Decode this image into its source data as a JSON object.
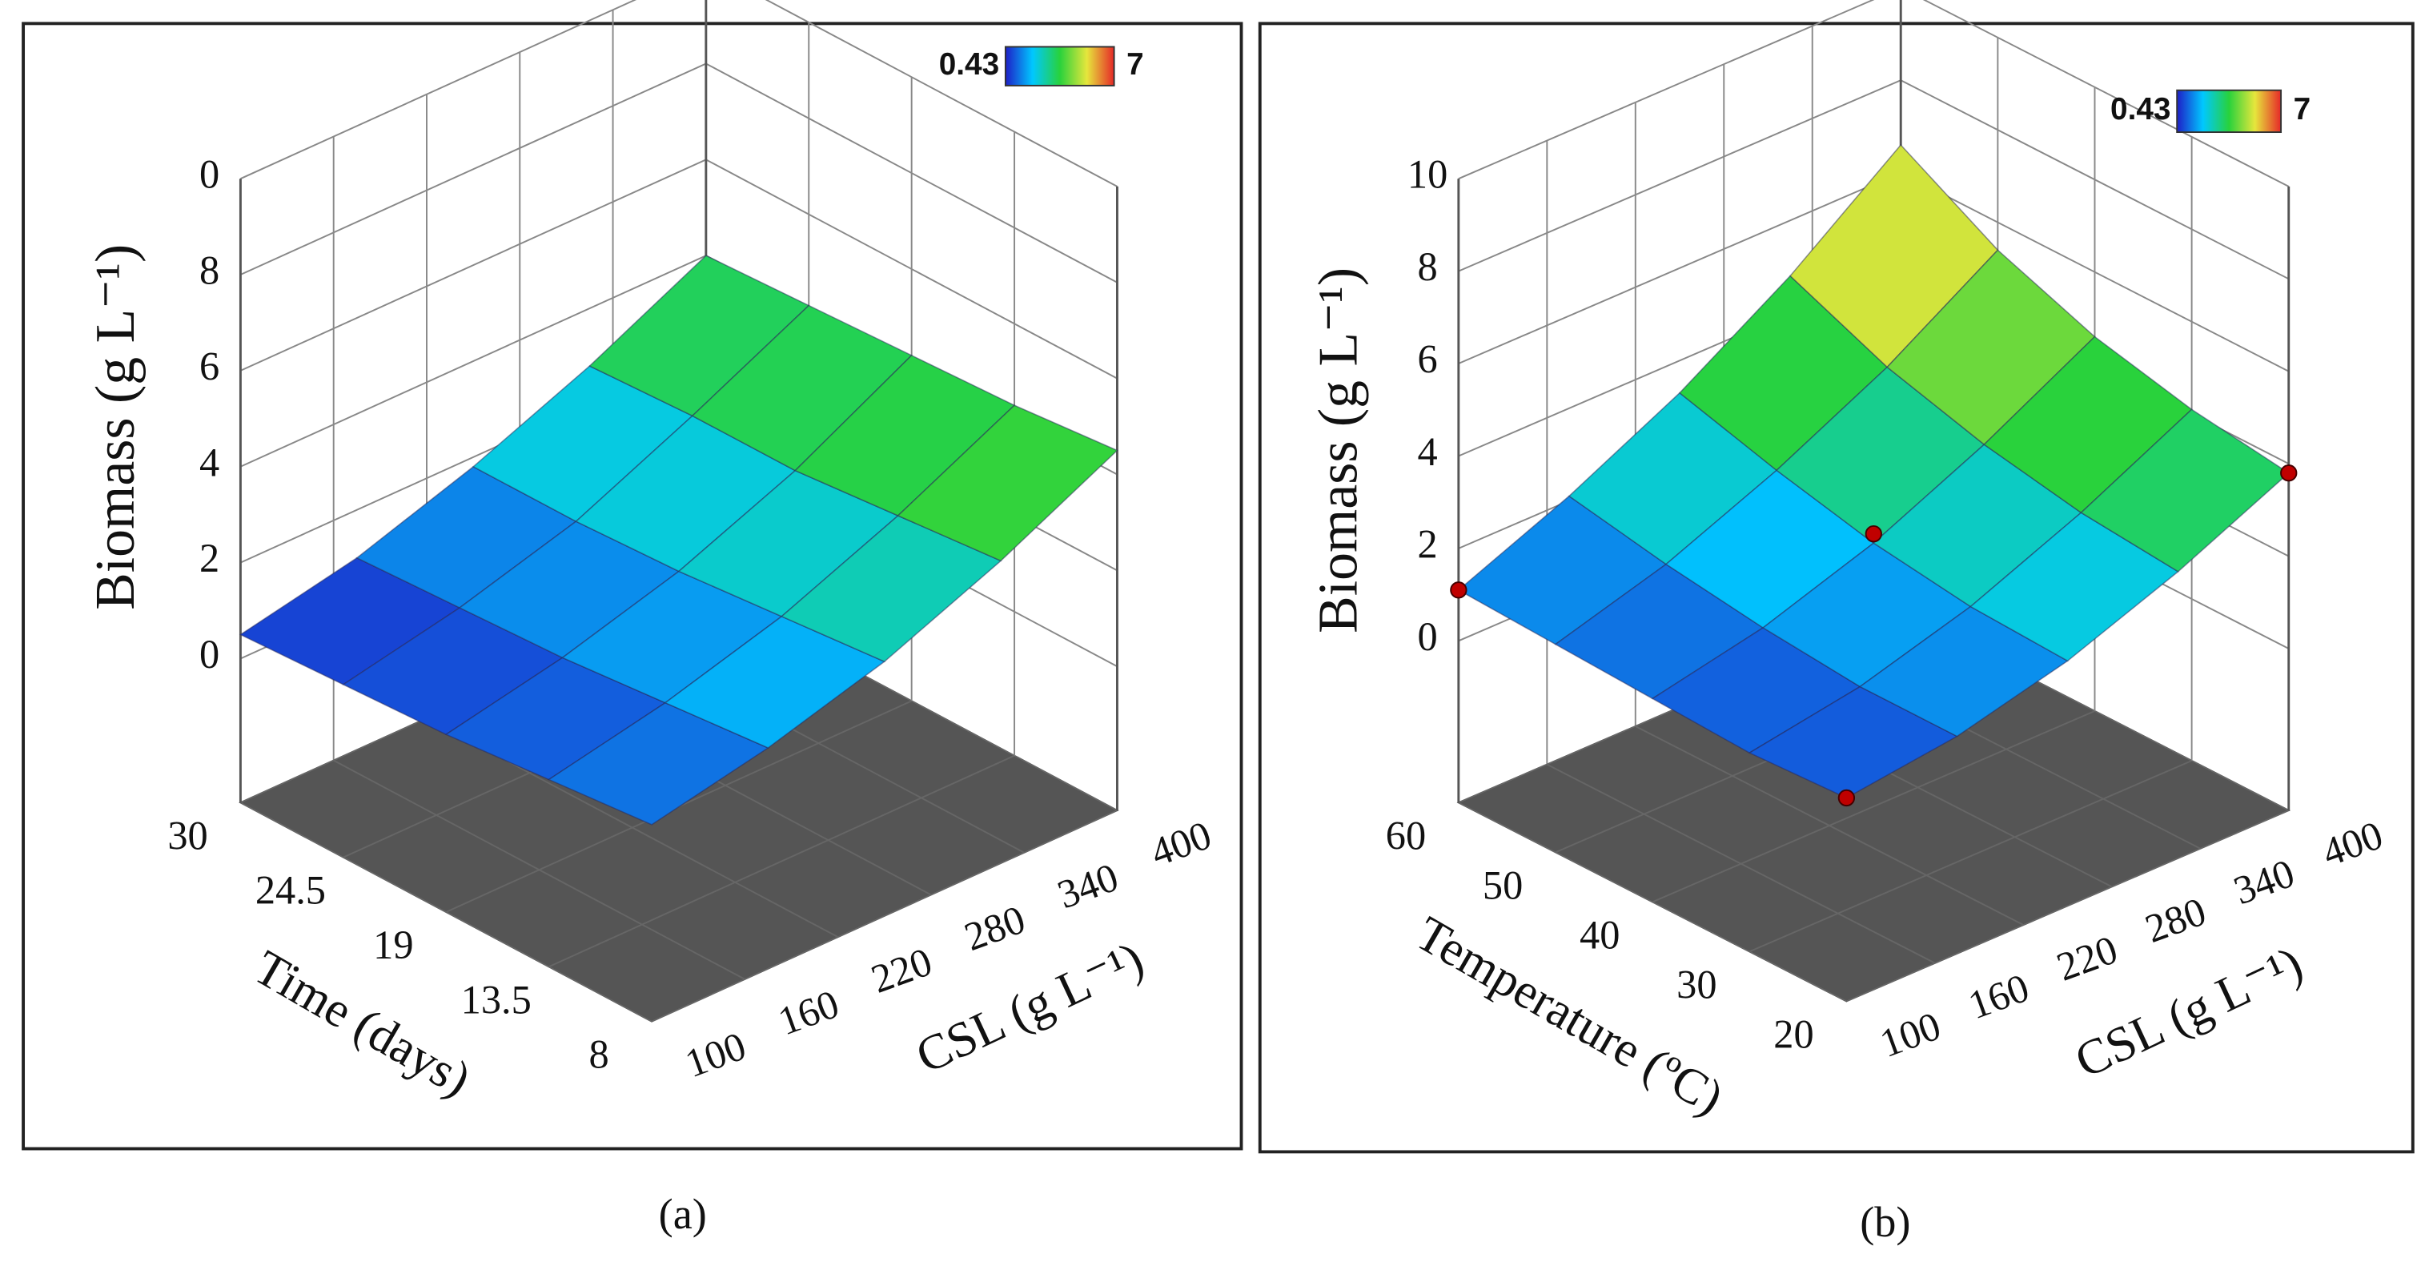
{
  "chart_data": [
    {
      "type": "surface",
      "caption": "(a)",
      "x_label": "CSL  (g L⁻¹)",
      "y_label": "Time (days)",
      "z_label": "Biomass  (g L⁻¹)",
      "x": [
        100,
        175,
        250,
        325,
        400
      ],
      "y": [
        8,
        13.5,
        19,
        24.5,
        30
      ],
      "z": [
        [
          1.1,
          1.6,
          2.3,
          3.3,
          4.5
        ],
        [
          0.9,
          1.4,
          2.1,
          3.1,
          4.3
        ],
        [
          0.7,
          1.2,
          1.9,
          2.9,
          4.2
        ],
        [
          0.6,
          1.1,
          1.8,
          2.9,
          4.1
        ],
        [
          0.5,
          1.0,
          1.8,
          2.8,
          4.0
        ]
      ],
      "xlim": [
        100,
        400
      ],
      "xticks": [
        100,
        160,
        220,
        280,
        340,
        400
      ],
      "ylim": [
        8,
        30
      ],
      "yticks": [
        8,
        13.5,
        19,
        24.5,
        30
      ],
      "zlim": [
        -3,
        10
      ],
      "zticks": [
        0,
        2,
        4,
        6,
        8,
        {
          "value": 10,
          "label": "0"
        }
      ],
      "colorbar": [
        0.43,
        7
      ]
    },
    {
      "type": "surface",
      "caption": "(b)",
      "x_label": "CSL  (g L⁻¹)",
      "y_label": "Temperature (ºC)",
      "z_label": "Biomass  (g L⁻¹)",
      "x": [
        100,
        175,
        250,
        325,
        400
      ],
      "y": [
        20,
        30,
        40,
        50,
        60
      ],
      "z": [
        [
          0.9,
          1.2,
          1.8,
          2.7,
          3.8
        ],
        [
          0.8,
          1.2,
          1.9,
          2.9,
          4.1
        ],
        [
          0.9,
          1.4,
          2.2,
          3.3,
          4.6
        ],
        [
          1.0,
          1.7,
          2.7,
          3.9,
          5.4
        ],
        [
          1.1,
          2.1,
          3.3,
          4.8,
          6.6
        ]
      ],
      "xlim": [
        100,
        400
      ],
      "xticks": [
        100,
        160,
        220,
        280,
        340,
        400
      ],
      "ylim": [
        20,
        60
      ],
      "yticks": [
        20,
        30,
        40,
        50,
        60
      ],
      "zlim": [
        -3.5,
        10
      ],
      "zticks": [
        0,
        2,
        4,
        6,
        8,
        10
      ],
      "colorbar": [
        0.43,
        7
      ],
      "points": {
        "color": "#c00000",
        "x": [
          100,
          400,
          250,
          100
        ],
        "y": [
          20,
          20,
          40,
          60
        ],
        "z": [
          0.9,
          3.8,
          2.4,
          1.1
        ]
      }
    }
  ]
}
